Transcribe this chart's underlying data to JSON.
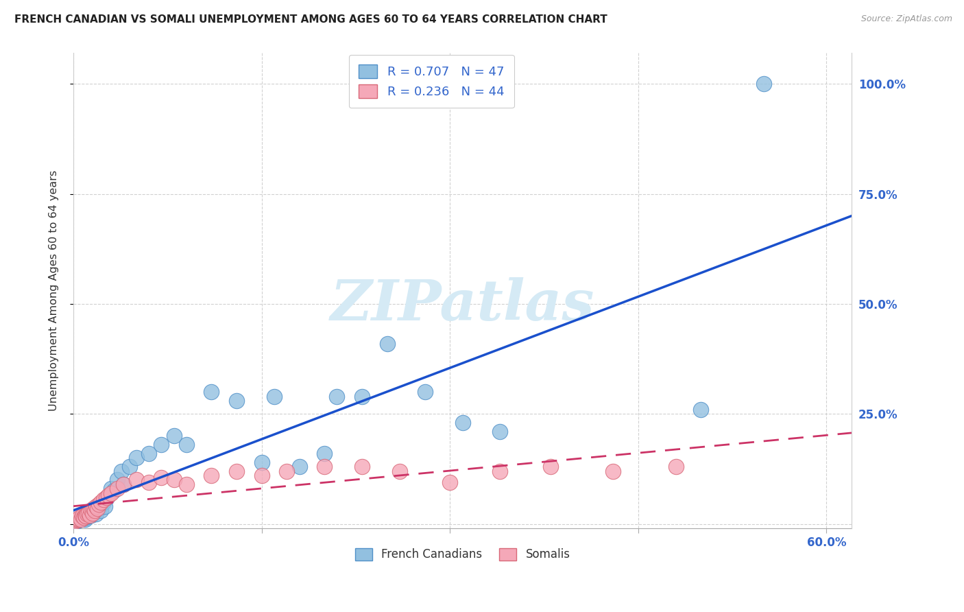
{
  "title": "FRENCH CANADIAN VS SOMALI UNEMPLOYMENT AMONG AGES 60 TO 64 YEARS CORRELATION CHART",
  "source": "Source: ZipAtlas.com",
  "ylabel": "Unemployment Among Ages 60 to 64 years",
  "xlim": [
    0.0,
    0.62
  ],
  "ylim": [
    -0.01,
    1.07
  ],
  "xtick_positions": [
    0.0,
    0.15,
    0.3,
    0.45,
    0.6
  ],
  "xtick_labels": [
    "0.0%",
    "",
    "",
    "",
    "60.0%"
  ],
  "ytick_positions": [
    0.0,
    0.25,
    0.5,
    0.75,
    1.0
  ],
  "ytick_labels_right": [
    "",
    "25.0%",
    "50.0%",
    "75.0%",
    "100.0%"
  ],
  "grid_color": "#cccccc",
  "bg_color": "#ffffff",
  "watermark": "ZIPatlas",
  "fc_color": "#92C0E0",
  "fc_edge": "#5090C8",
  "so_color": "#F5A8B8",
  "so_edge": "#D86878",
  "trend_fc_color": "#1A50CC",
  "trend_so_color": "#CC3366",
  "label_color": "#3366CC",
  "french_R": "0.707",
  "french_N": "47",
  "somali_R": "0.236",
  "somali_N": "44",
  "fc_x": [
    0.002,
    0.003,
    0.004,
    0.005,
    0.006,
    0.007,
    0.008,
    0.009,
    0.01,
    0.011,
    0.012,
    0.013,
    0.014,
    0.015,
    0.016,
    0.017,
    0.018,
    0.02,
    0.022,
    0.024,
    0.025,
    0.027,
    0.03,
    0.032,
    0.035,
    0.038,
    0.04,
    0.045,
    0.05,
    0.06,
    0.07,
    0.08,
    0.09,
    0.11,
    0.13,
    0.15,
    0.16,
    0.18,
    0.2,
    0.21,
    0.23,
    0.25,
    0.28,
    0.31,
    0.34,
    0.5,
    0.55
  ],
  "fc_y": [
    0.005,
    0.01,
    0.008,
    0.012,
    0.01,
    0.015,
    0.012,
    0.01,
    0.015,
    0.02,
    0.018,
    0.025,
    0.02,
    0.03,
    0.025,
    0.028,
    0.022,
    0.035,
    0.03,
    0.05,
    0.04,
    0.06,
    0.08,
    0.075,
    0.1,
    0.12,
    0.09,
    0.13,
    0.15,
    0.16,
    0.18,
    0.2,
    0.18,
    0.3,
    0.28,
    0.14,
    0.29,
    0.13,
    0.16,
    0.29,
    0.29,
    0.41,
    0.3,
    0.23,
    0.21,
    0.26,
    1.0
  ],
  "so_x": [
    0.001,
    0.002,
    0.003,
    0.004,
    0.005,
    0.006,
    0.007,
    0.008,
    0.009,
    0.01,
    0.011,
    0.012,
    0.013,
    0.014,
    0.015,
    0.016,
    0.017,
    0.018,
    0.019,
    0.02,
    0.022,
    0.024,
    0.026,
    0.028,
    0.03,
    0.035,
    0.04,
    0.05,
    0.06,
    0.07,
    0.08,
    0.09,
    0.11,
    0.13,
    0.15,
    0.17,
    0.2,
    0.23,
    0.26,
    0.3,
    0.34,
    0.38,
    0.43,
    0.48
  ],
  "so_y": [
    0.005,
    0.008,
    0.01,
    0.012,
    0.015,
    0.01,
    0.018,
    0.015,
    0.02,
    0.018,
    0.022,
    0.025,
    0.02,
    0.03,
    0.025,
    0.035,
    0.03,
    0.04,
    0.035,
    0.045,
    0.05,
    0.055,
    0.06,
    0.065,
    0.07,
    0.08,
    0.09,
    0.1,
    0.095,
    0.105,
    0.1,
    0.09,
    0.11,
    0.12,
    0.11,
    0.12,
    0.13,
    0.13,
    0.12,
    0.095,
    0.12,
    0.13,
    0.12,
    0.13
  ]
}
